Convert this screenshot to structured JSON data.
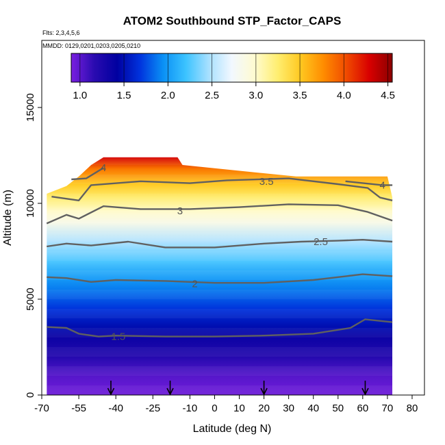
{
  "chart_data": {
    "type": "heatmap",
    "title": "ATOM2 Southbound STP_Factor_CAPS",
    "flights_note": "Flts: 2,3,4,5,6",
    "dates_note": "MMDD: 0129,0201,0203,0205,0210",
    "xlabel": "Latitude (deg N)",
    "ylabel": "Altitude (m)",
    "xlim": [
      -70,
      85
    ],
    "ylim": [
      0,
      18500
    ],
    "x_ticks": [
      -70,
      -55,
      -40,
      -25,
      -10,
      0,
      10,
      20,
      30,
      40,
      50,
      60,
      70,
      80
    ],
    "x_tick_labels": [
      "-70",
      "-55",
      "-40",
      "-25",
      "-10",
      "0",
      "10",
      "20",
      "30",
      "40",
      "50",
      "60",
      "70",
      "80"
    ],
    "y_ticks": [
      0,
      5000,
      10000,
      15000
    ],
    "y_tick_labels": [
      "0",
      "5000",
      "10000",
      "15000"
    ],
    "colorbar": {
      "range": [
        0.9,
        4.55
      ],
      "ticks": [
        1.0,
        1.5,
        2.0,
        2.5,
        3.0,
        3.5,
        4.0,
        4.5
      ],
      "tick_labels": [
        "1.0",
        "1.5",
        "2.0",
        "2.5",
        "3.0",
        "3.5",
        "4.0",
        "4.5"
      ],
      "colors": [
        "#7a1fe0",
        "#2a0bb0",
        "#0000a0",
        "#0033dd",
        "#0a90f5",
        "#3cc3ff",
        "#a8e0ff",
        "#f2f8ff",
        "#fffbd0",
        "#ffee70",
        "#ffc820",
        "#ff8c00",
        "#f04a00",
        "#d80000",
        "#8b0000"
      ]
    },
    "altitude_profile": [
      {
        "alt": 200,
        "value": 0.95
      },
      {
        "alt": 1000,
        "value": 1.02
      },
      {
        "alt": 2000,
        "value": 1.2
      },
      {
        "alt": 3000,
        "value": 1.35
      },
      {
        "alt": 3600,
        "value": 1.5
      },
      {
        "alt": 4500,
        "value": 1.68
      },
      {
        "alt": 5500,
        "value": 1.88
      },
      {
        "alt": 6100,
        "value": 2.0
      },
      {
        "alt": 7000,
        "value": 2.25
      },
      {
        "alt": 8000,
        "value": 2.5
      },
      {
        "alt": 9000,
        "value": 2.85
      },
      {
        "alt": 9600,
        "value": 3.0
      },
      {
        "alt": 10300,
        "value": 3.25
      },
      {
        "alt": 11000,
        "value": 3.5
      },
      {
        "alt": 11800,
        "value": 3.85
      },
      {
        "alt": 12400,
        "value": 4.3
      }
    ],
    "data_extent": {
      "lat_min": -68,
      "lat_max": 72,
      "ceiling": [
        {
          "lat": -68,
          "alt": 10500
        },
        {
          "lat": -60,
          "alt": 10900
        },
        {
          "lat": -55,
          "alt": 11400
        },
        {
          "lat": -50,
          "alt": 12000
        },
        {
          "lat": -45,
          "alt": 12400
        },
        {
          "lat": -15,
          "alt": 12400
        },
        {
          "lat": -13,
          "alt": 12000
        },
        {
          "lat": 33,
          "alt": 11400
        },
        {
          "lat": 70,
          "alt": 11400
        },
        {
          "lat": 72,
          "alt": 10300
        }
      ]
    },
    "contours": [
      {
        "level": "1.5",
        "label": "1.5",
        "label_lat": -39,
        "label_alt": 3050,
        "points": [
          [
            -68,
            3550
          ],
          [
            -60,
            3500
          ],
          [
            -55,
            3200
          ],
          [
            -47,
            3050
          ],
          [
            -40,
            3100
          ],
          [
            -20,
            3050
          ],
          [
            0,
            3050
          ],
          [
            20,
            3100
          ],
          [
            40,
            3200
          ],
          [
            55,
            3500
          ],
          [
            61,
            3950
          ],
          [
            72,
            3800
          ]
        ]
      },
      {
        "level": "2",
        "label": "2",
        "label_lat": -8,
        "label_alt": 5800,
        "points": [
          [
            -68,
            6150
          ],
          [
            -60,
            6100
          ],
          [
            -50,
            5900
          ],
          [
            -40,
            6000
          ],
          [
            -20,
            5950
          ],
          [
            0,
            5850
          ],
          [
            20,
            5850
          ],
          [
            40,
            6000
          ],
          [
            60,
            6300
          ],
          [
            72,
            6200
          ]
        ]
      },
      {
        "level": "2.5",
        "label": "2.5",
        "label_lat": 43,
        "label_alt": 8000,
        "points": [
          [
            -68,
            7750
          ],
          [
            -60,
            7900
          ],
          [
            -50,
            7800
          ],
          [
            -35,
            8000
          ],
          [
            -20,
            7700
          ],
          [
            0,
            7700
          ],
          [
            20,
            7900
          ],
          [
            35,
            8000
          ],
          [
            50,
            8050
          ],
          [
            60,
            8100
          ],
          [
            72,
            8000
          ]
        ]
      },
      {
        "level": "3",
        "label": "3",
        "label_lat": -14,
        "label_alt": 9600,
        "points": [
          [
            -68,
            8950
          ],
          [
            -60,
            9400
          ],
          [
            -55,
            9200
          ],
          [
            -45,
            9850
          ],
          [
            -30,
            9700
          ],
          [
            -10,
            9700
          ],
          [
            10,
            9800
          ],
          [
            30,
            9950
          ],
          [
            50,
            9900
          ],
          [
            62,
            9550
          ],
          [
            72,
            9100
          ]
        ]
      },
      {
        "level": "3.5",
        "label": "3.5",
        "label_lat": 21,
        "label_alt": 11150,
        "points": [
          [
            -66,
            10350
          ],
          [
            -55,
            10150
          ],
          [
            -50,
            10950
          ],
          [
            -30,
            11150
          ],
          [
            -10,
            11050
          ],
          [
            5,
            11200
          ],
          [
            30,
            11300
          ],
          [
            50,
            11000
          ],
          [
            62,
            10800
          ],
          [
            67,
            10300
          ],
          [
            72,
            10150
          ]
        ]
      },
      {
        "level": "4",
        "label": "4",
        "label_lat": -45,
        "label_alt": 11850,
        "points": [
          [
            -58,
            11250
          ],
          [
            -52,
            11300
          ],
          [
            -45,
            11850
          ]
        ]
      },
      {
        "level": "4",
        "label": "4",
        "label_lat": 68,
        "label_alt": 10950,
        "points": [
          [
            53,
            11150
          ],
          [
            68,
            10950
          ],
          [
            72,
            10950
          ]
        ]
      }
    ],
    "flight_markers_lat": [
      -42,
      -18,
      20,
      61
    ]
  }
}
